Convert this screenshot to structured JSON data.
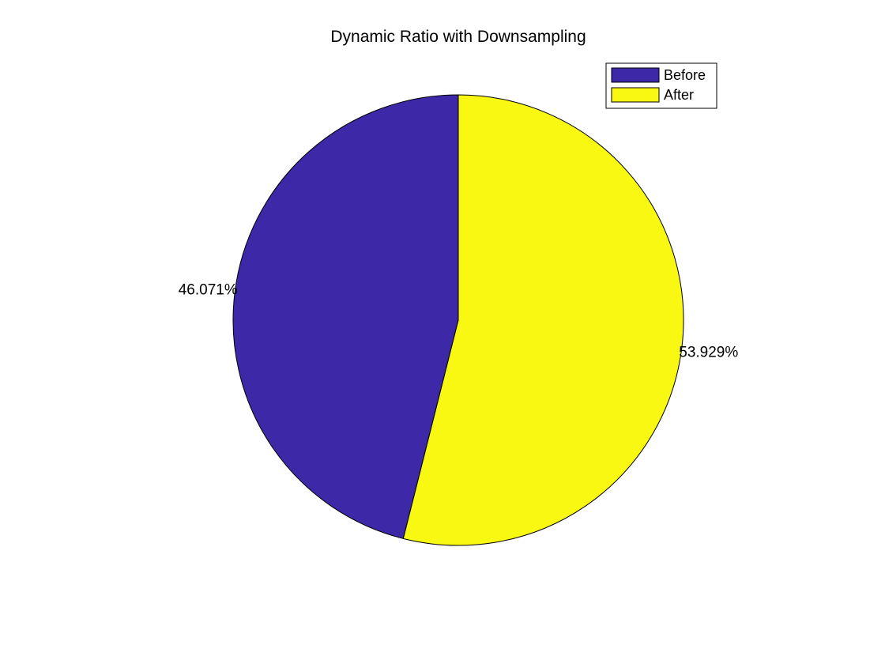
{
  "chart_data": {
    "type": "pie",
    "title": "Dynamic Ratio with Downsampling",
    "slices": [
      {
        "name": "Before",
        "value": 46.071,
        "label": "46.071%",
        "color": "#3d28a8"
      },
      {
        "name": "After",
        "value": 53.929,
        "label": "53.929%",
        "color": "#f8f812"
      }
    ],
    "start_angle_deg": 90,
    "direction": "counterclockwise",
    "legend": {
      "position": "top-right",
      "entries": [
        "Before",
        "After"
      ]
    }
  }
}
